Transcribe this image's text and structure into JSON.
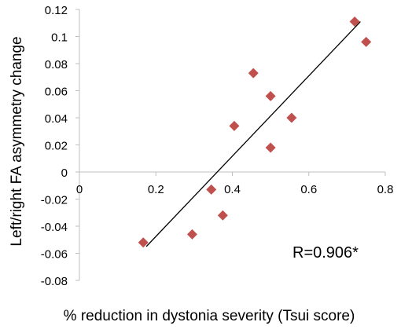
{
  "chart_data": {
    "type": "scatter",
    "title": "",
    "xlabel": "% reduction in dystonia severity (Tsui score)",
    "ylabel": "Left/right FA asymmetry change",
    "xlim": [
      0,
      0.8
    ],
    "ylim": [
      -0.08,
      0.12
    ],
    "xticks": [
      0,
      0.2,
      0.4,
      0.6,
      0.8
    ],
    "yticks": [
      -0.08,
      -0.06,
      -0.04,
      -0.02,
      0,
      0.02,
      0.04,
      0.06,
      0.08,
      0.1,
      0.12
    ],
    "xtick_labels": [
      "0",
      "0.2",
      "0.4",
      "0.6",
      "0.8"
    ],
    "ytick_labels": [
      "-0.08",
      "-0.06",
      "-0.04",
      "-0.02",
      "0",
      "0.02",
      "0.04",
      "0.06",
      "0.08",
      "0.1",
      "0.12"
    ],
    "points": [
      {
        "x": 0.167,
        "y": -0.052
      },
      {
        "x": 0.295,
        "y": -0.046
      },
      {
        "x": 0.345,
        "y": -0.013
      },
      {
        "x": 0.375,
        "y": -0.032
      },
      {
        "x": 0.405,
        "y": 0.034
      },
      {
        "x": 0.455,
        "y": 0.073
      },
      {
        "x": 0.5,
        "y": 0.056
      },
      {
        "x": 0.5,
        "y": 0.018
      },
      {
        "x": 0.555,
        "y": 0.04
      },
      {
        "x": 0.72,
        "y": 0.111
      },
      {
        "x": 0.75,
        "y": 0.096
      }
    ],
    "trendline": {
      "x1": 0.175,
      "y1": -0.055,
      "x2": 0.735,
      "y2": 0.111
    },
    "annotation": "R=0.906*",
    "marker_color": "#c0504d",
    "axis_color": "#bfbfbf",
    "trendline_color": "#000000",
    "grid": false,
    "legend": "none"
  }
}
